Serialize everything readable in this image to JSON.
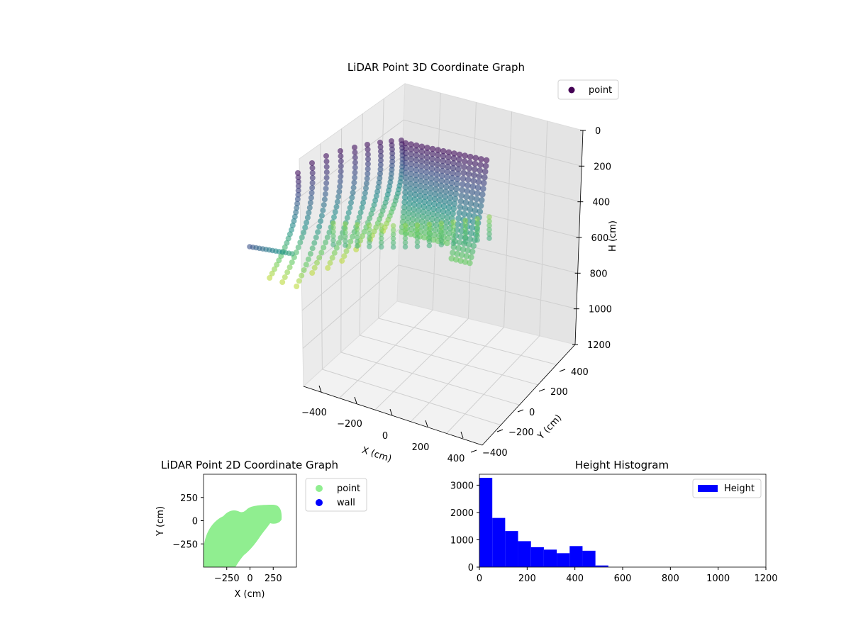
{
  "chart_data": [
    {
      "type": "scatter3d",
      "title": "LiDAR Point 3D Coordinate Graph",
      "xlabel": "X (cm)",
      "ylabel": "Y (cm)",
      "zlabel": "H (cm)",
      "xticks": [
        "−400",
        "−200",
        "0",
        "200",
        "400"
      ],
      "yticks": [
        "−400",
        "−200",
        "0",
        "200",
        "400"
      ],
      "zticks": [
        "0",
        "200",
        "400",
        "600",
        "800",
        "1000",
        "1200"
      ],
      "zlim": [
        1200,
        0
      ],
      "zaxis_inverted": true,
      "colormap": "viridis (by height)",
      "legend": [
        {
          "label": "point",
          "color": "#440154"
        }
      ],
      "legend_position": "top-right",
      "grid": true
    },
    {
      "type": "scatter",
      "title": "LiDAR Point 2D Coordinate Graph",
      "xlabel": "X (cm)",
      "ylabel": "Y (cm)",
      "xticks": [
        "−250",
        "0",
        "250"
      ],
      "yticks": [
        "250",
        "0",
        "−250"
      ],
      "xlim": [
        -500,
        500
      ],
      "ylim": [
        -500,
        500
      ],
      "series": [
        {
          "name": "point",
          "color": "#90ee90"
        },
        {
          "name": "wall",
          "color": "#0000ff"
        }
      ],
      "legend_position": "outside-right",
      "grid": false
    },
    {
      "type": "bar",
      "title": "Height Histogram",
      "xlabel": "",
      "ylabel": "",
      "xticks": [
        "0",
        "200",
        "400",
        "600",
        "800",
        "1000",
        "1200"
      ],
      "yticks": [
        "0",
        "1000",
        "2000",
        "3000"
      ],
      "xlim": [
        0,
        1200
      ],
      "ylim": [
        0,
        3400
      ],
      "bin_width": 54,
      "series": [
        {
          "name": "Height",
          "color": "#0000ff",
          "bins": [
            {
              "start": 0,
              "count": 3270
            },
            {
              "start": 54,
              "count": 1800
            },
            {
              "start": 108,
              "count": 1320
            },
            {
              "start": 162,
              "count": 950
            },
            {
              "start": 216,
              "count": 730
            },
            {
              "start": 270,
              "count": 640
            },
            {
              "start": 324,
              "count": 510
            },
            {
              "start": 378,
              "count": 770
            },
            {
              "start": 432,
              "count": 600
            },
            {
              "start": 486,
              "count": 60
            }
          ]
        }
      ],
      "legend_position": "top-right",
      "grid": false
    }
  ]
}
